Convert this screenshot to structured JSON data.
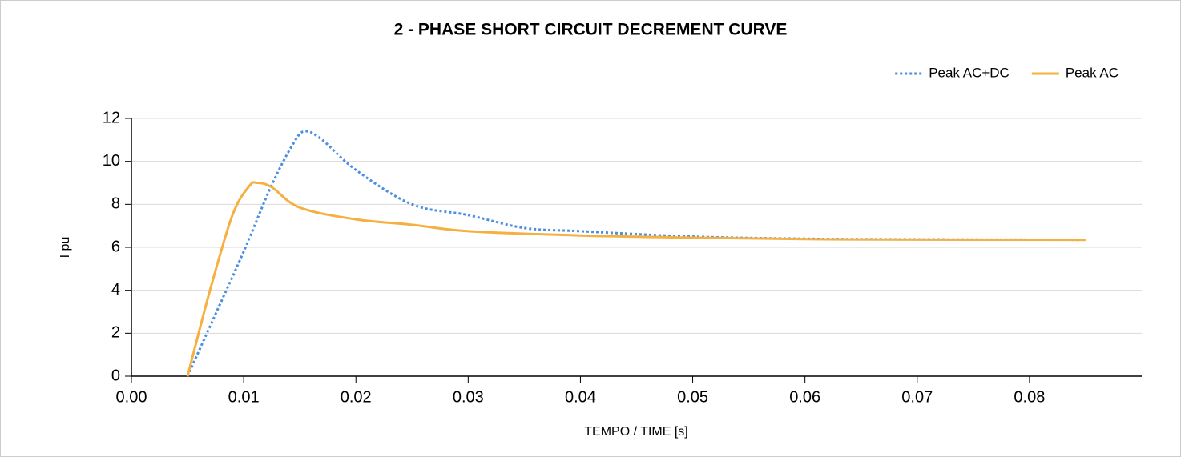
{
  "chart_data": {
    "type": "line",
    "title": "2 - PHASE SHORT CIRCUIT DECREMENT CURVE",
    "x_label": "TEMPO / TIME [s]",
    "y_label": "I pu",
    "xlim": [
      0,
      0.09
    ],
    "xticks": [
      {
        "value": 0,
        "label": "0.00"
      },
      0.01,
      0.02,
      0.03,
      0.04,
      0.05,
      0.06,
      0.07,
      0.08
    ],
    "ylim": [
      0,
      12
    ],
    "yticks": [
      0,
      2,
      4,
      6,
      8,
      10,
      12
    ],
    "grid": true,
    "legend": "top-right",
    "series": [
      {
        "name": "Peak AC+DC",
        "color": "#4a8fe0",
        "dash": "dotted",
        "x": [
          0.005,
          0.0075,
          0.01,
          0.0125,
          0.0145,
          0.0155,
          0.017,
          0.02,
          0.025,
          0.03,
          0.035,
          0.04,
          0.05,
          0.06,
          0.07,
          0.085
        ],
        "values": [
          0,
          2.9,
          5.8,
          8.9,
          10.9,
          11.4,
          11.0,
          9.6,
          8.0,
          7.5,
          6.9,
          6.75,
          6.5,
          6.4,
          6.37,
          6.35
        ]
      },
      {
        "name": "Peak AC",
        "color": "#f5b041",
        "dash": "solid",
        "x": [
          0.005,
          0.007,
          0.009,
          0.0105,
          0.0112,
          0.0125,
          0.015,
          0.02,
          0.025,
          0.03,
          0.04,
          0.05,
          0.06,
          0.07,
          0.085
        ],
        "values": [
          0,
          4.0,
          7.5,
          8.85,
          9.0,
          8.8,
          7.85,
          7.3,
          7.05,
          6.75,
          6.55,
          6.45,
          6.38,
          6.36,
          6.35
        ]
      }
    ]
  }
}
